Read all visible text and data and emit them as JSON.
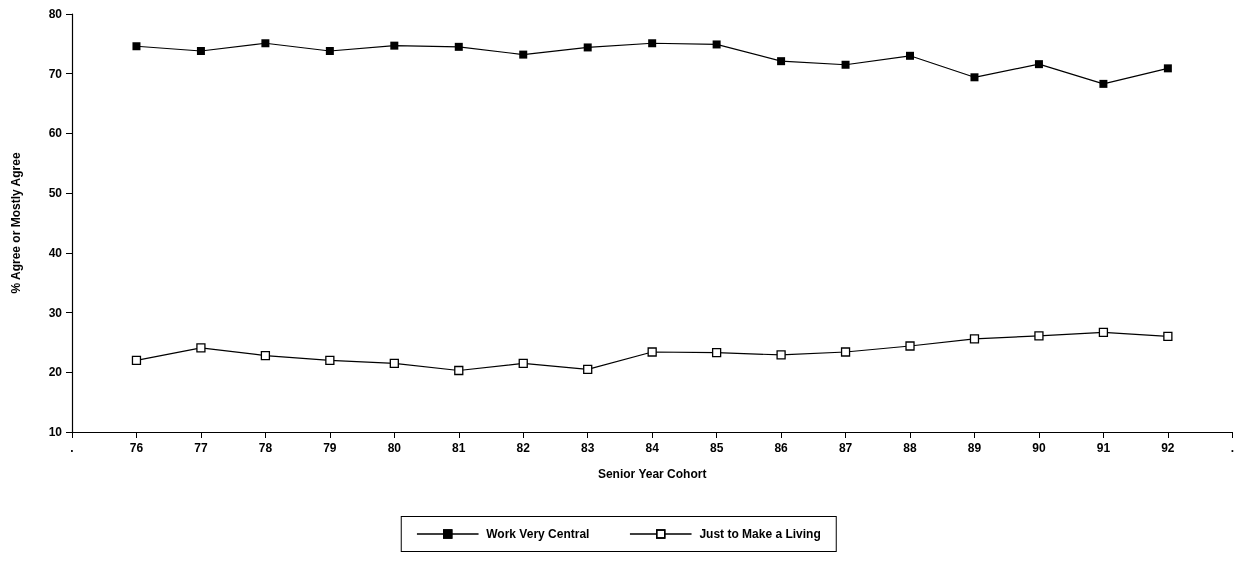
{
  "chart_data": {
    "type": "line",
    "xlabel": "Senior Year Cohort",
    "ylabel": "% Agree or Mostly Agree",
    "categories": [
      ".",
      "76",
      "77",
      "78",
      "79",
      "80",
      "81",
      "82",
      "83",
      "84",
      "85",
      "86",
      "87",
      "88",
      "89",
      "90",
      "91",
      "92",
      "."
    ],
    "series": [
      {
        "name": "Work Very Central",
        "color": "#000000",
        "values": [
          null,
          74.6,
          73.8,
          75.1,
          73.8,
          74.7,
          74.5,
          73.2,
          74.4,
          75.1,
          74.9,
          72.1,
          71.5,
          73.0,
          69.4,
          71.6,
          68.3,
          70.9,
          null
        ]
      },
      {
        "name": "Just to Make a Living",
        "color": "#000000",
        "values": [
          null,
          22.0,
          24.1,
          22.8,
          22.0,
          21.5,
          20.3,
          21.5,
          20.5,
          23.4,
          23.3,
          22.9,
          23.4,
          24.4,
          25.6,
          26.1,
          26.7,
          26.0,
          null
        ]
      }
    ],
    "ylim": [
      10,
      80
    ],
    "yticks": [
      10,
      20,
      30,
      40,
      50,
      60,
      70,
      80
    ],
    "grid": false,
    "legend": "bottom",
    "marker": "square",
    "line_style": "solid"
  }
}
